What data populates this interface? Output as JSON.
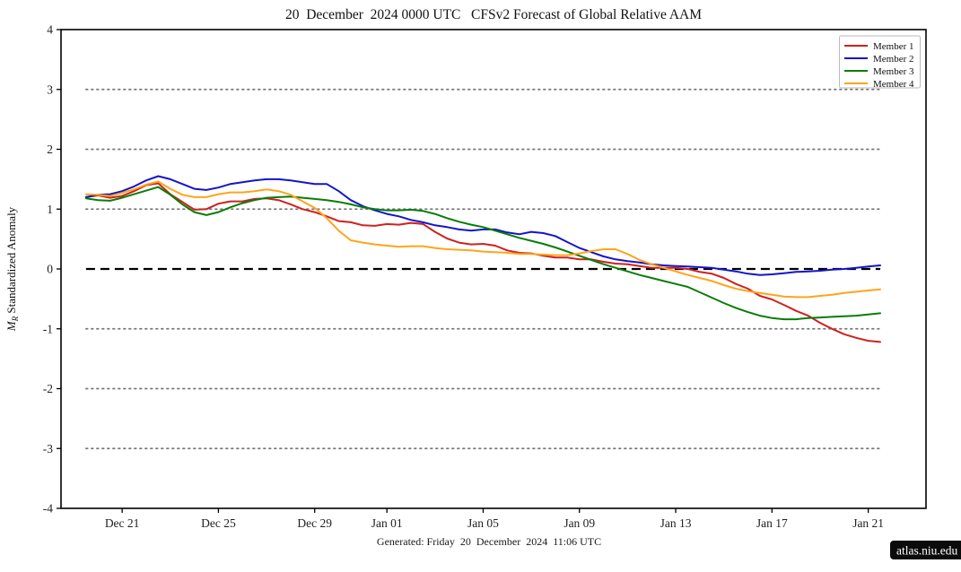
{
  "chart_data": {
    "type": "line",
    "title": "20  December  2024 0000 UTC   CFSv2 Forecast of Global Relative AAM",
    "ylabel": {
      "var": "M",
      "sub": "R",
      "rest": " Standardized Anomaly"
    },
    "caption": "Generated: Friday  20  December  2024  11:06 UTC",
    "site_badge": "atlas.niu.edu",
    "ylim": [
      -4,
      4
    ],
    "yticks": [
      {
        "value": 4,
        "label": "4"
      },
      {
        "value": 3,
        "label": "3"
      },
      {
        "value": 2,
        "label": "2"
      },
      {
        "value": 1,
        "label": "1"
      },
      {
        "value": 0,
        "label": "0"
      },
      {
        "value": -1,
        "label": "-1"
      },
      {
        "value": -2,
        "label": "-2"
      },
      {
        "value": -3,
        "label": "-3"
      },
      {
        "value": -4,
        "label": "-4"
      }
    ],
    "xlim_days": [
      -1.54,
      34.4
    ],
    "xticks": [
      {
        "day": 1,
        "label": "Dec 21"
      },
      {
        "day": 5,
        "label": "Dec 25"
      },
      {
        "day": 9,
        "label": "Dec 29"
      },
      {
        "day": 12,
        "label": "Jan 01"
      },
      {
        "day": 16,
        "label": "Jan 05"
      },
      {
        "day": 20,
        "label": "Jan 09"
      },
      {
        "day": 24,
        "label": "Jan 13"
      },
      {
        "day": 28,
        "label": "Jan 17"
      },
      {
        "day": 32,
        "label": "Jan 21"
      }
    ],
    "grid": {
      "dotted_values": [
        3,
        2,
        1,
        -1,
        -2,
        -3
      ],
      "dotted_color": "#777777",
      "zero_line_value": 0,
      "zero_line_color": "#000000"
    },
    "x_start_day": -0.5,
    "x_step_days": 0.5,
    "legend": {
      "position": "top-right"
    },
    "series": [
      {
        "name": "Member 1",
        "color": "#cf2020",
        "values": [
          1.2,
          1.23,
          1.19,
          1.22,
          1.3,
          1.4,
          1.43,
          1.25,
          1.12,
          0.99,
          1.0,
          1.09,
          1.13,
          1.13,
          1.17,
          1.18,
          1.15,
          1.08,
          1.0,
          0.95,
          0.88,
          0.8,
          0.78,
          0.73,
          0.72,
          0.75,
          0.74,
          0.77,
          0.75,
          0.62,
          0.51,
          0.44,
          0.41,
          0.42,
          0.39,
          0.31,
          0.27,
          0.26,
          0.22,
          0.19,
          0.19,
          0.16,
          0.16,
          0.12,
          0.09,
          0.08,
          0.05,
          0.02,
          0.02,
          0.02,
          0.0,
          -0.05,
          -0.08,
          -0.15,
          -0.25,
          -0.33,
          -0.45,
          -0.51,
          -0.6,
          -0.7,
          -0.78,
          -0.9,
          -1.0,
          -1.09,
          -1.15,
          -1.2,
          -1.22
        ]
      },
      {
        "name": "Member 2",
        "color": "#1414cc",
        "values": [
          1.2,
          1.24,
          1.25,
          1.3,
          1.38,
          1.48,
          1.55,
          1.5,
          1.42,
          1.34,
          1.32,
          1.36,
          1.42,
          1.45,
          1.48,
          1.5,
          1.5,
          1.48,
          1.45,
          1.42,
          1.42,
          1.3,
          1.15,
          1.05,
          0.98,
          0.92,
          0.88,
          0.82,
          0.78,
          0.73,
          0.7,
          0.66,
          0.64,
          0.66,
          0.66,
          0.61,
          0.58,
          0.62,
          0.6,
          0.55,
          0.45,
          0.35,
          0.28,
          0.21,
          0.16,
          0.13,
          0.11,
          0.08,
          0.06,
          0.05,
          0.04,
          0.03,
          0.02,
          -0.01,
          -0.04,
          -0.08,
          -0.1,
          -0.09,
          -0.07,
          -0.05,
          -0.04,
          -0.03,
          -0.01,
          0.0,
          0.02,
          0.04,
          0.06
        ]
      },
      {
        "name": "Member 3",
        "color": "#077d07",
        "values": [
          1.18,
          1.15,
          1.14,
          1.19,
          1.25,
          1.31,
          1.37,
          1.24,
          1.08,
          0.95,
          0.9,
          0.95,
          1.03,
          1.1,
          1.15,
          1.19,
          1.2,
          1.21,
          1.19,
          1.17,
          1.15,
          1.12,
          1.08,
          1.03,
          1.0,
          0.98,
          0.98,
          0.99,
          0.97,
          0.92,
          0.85,
          0.79,
          0.74,
          0.7,
          0.64,
          0.58,
          0.52,
          0.47,
          0.42,
          0.36,
          0.29,
          0.22,
          0.15,
          0.08,
          0.02,
          -0.04,
          -0.1,
          -0.15,
          -0.2,
          -0.25,
          -0.3,
          -0.39,
          -0.48,
          -0.57,
          -0.65,
          -0.72,
          -0.78,
          -0.82,
          -0.84,
          -0.84,
          -0.82,
          -0.81,
          -0.8,
          -0.79,
          -0.78,
          -0.76,
          -0.74
        ]
      },
      {
        "name": "Member 4",
        "color": "#ffa41b",
        "values": [
          1.25,
          1.24,
          1.22,
          1.27,
          1.33,
          1.41,
          1.46,
          1.34,
          1.24,
          1.2,
          1.2,
          1.25,
          1.28,
          1.28,
          1.3,
          1.33,
          1.3,
          1.24,
          1.13,
          1.02,
          0.85,
          0.64,
          0.48,
          0.44,
          0.41,
          0.39,
          0.37,
          0.38,
          0.38,
          0.35,
          0.33,
          0.32,
          0.31,
          0.29,
          0.28,
          0.27,
          0.25,
          0.25,
          0.24,
          0.23,
          0.23,
          0.26,
          0.3,
          0.33,
          0.33,
          0.25,
          0.15,
          0.08,
          0.02,
          -0.04,
          -0.1,
          -0.15,
          -0.2,
          -0.27,
          -0.33,
          -0.37,
          -0.4,
          -0.43,
          -0.46,
          -0.47,
          -0.47,
          -0.45,
          -0.43,
          -0.4,
          -0.38,
          -0.36,
          -0.34
        ]
      }
    ]
  }
}
